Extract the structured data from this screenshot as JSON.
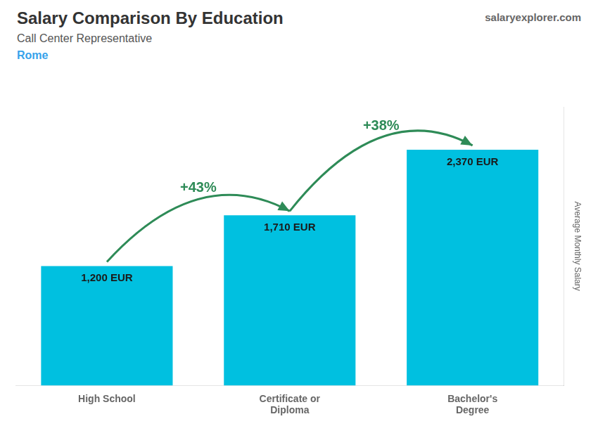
{
  "chart_data": {
    "type": "bar",
    "title": "Salary Comparison By Education",
    "subtitle": "Call Center Representative",
    "ylabel": "Average Monthly Salary",
    "categories": [
      "High School",
      "Certificate or\nDiploma",
      "Bachelor's\nDegree"
    ],
    "values": [
      1200,
      1710,
      2370
    ],
    "value_labels": [
      "1,200 EUR",
      "1,710 EUR",
      "2,370 EUR"
    ],
    "data_labels": true,
    "color": "#00c0e0",
    "ylim": [
      0,
      2800
    ],
    "grid": false,
    "tick_labels": "x",
    "annotations": [
      {
        "text": "Rome"
      },
      {
        "text": "salaryexplorer.com"
      },
      {
        "text": "+43%",
        "from": "High School",
        "to": "Certificate or\nDiploma"
      },
      {
        "text": "+38%",
        "from": "Certificate or\nDiploma",
        "to": "Bachelor's\nDegree"
      }
    ]
  }
}
